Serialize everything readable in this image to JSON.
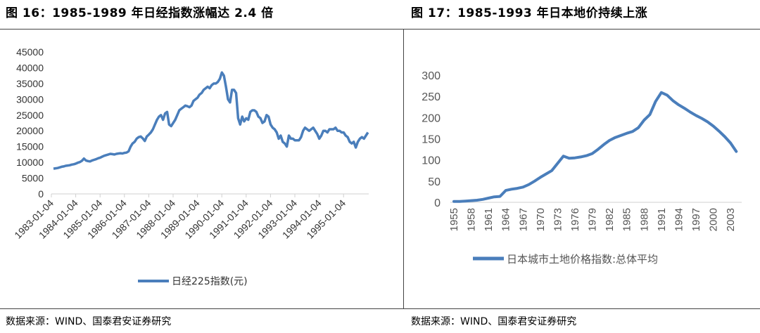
{
  "left": {
    "title": "图 16：1985-1989 年日经指数涨幅达 2.4 倍",
    "source": "数据来源：WIND、国泰君安证券研究"
  },
  "right": {
    "title": "图 17：1985-1993 年日本地价持续上涨",
    "source": "数据来源：WIND、国泰君安证券研究"
  },
  "chart_data": [
    {
      "type": "line",
      "title": "",
      "xlabel": "",
      "ylabel": "",
      "ylim": [
        0,
        45000
      ],
      "yticks": [
        "0",
        "5000",
        "10000",
        "15000",
        "20000",
        "25000",
        "30000",
        "35000",
        "40000",
        "45000"
      ],
      "xticks": [
        "1983-01-04",
        "1984-01-04",
        "1985-01-04",
        "1986-01-04",
        "1987-01-04",
        "1988-01-04",
        "1989-01-04",
        "1990-01-04",
        "1991-01-04",
        "1992-01-04",
        "1993-01-04",
        "1994-01-04",
        "1995-01-04"
      ],
      "grid": false,
      "legend_placement": "bottom",
      "color": "#4a7ebb",
      "series": [
        {
          "name": "日经225指数(元)",
          "start": "1983-01",
          "frequency": "monthly",
          "values": [
            8000,
            8100,
            8200,
            8400,
            8600,
            8700,
            8900,
            9000,
            9100,
            9300,
            9400,
            9600,
            9900,
            10100,
            10500,
            11200,
            10600,
            10400,
            10300,
            10600,
            10800,
            11000,
            11300,
            11500,
            11800,
            12100,
            12300,
            12500,
            12700,
            12600,
            12500,
            12700,
            12800,
            12900,
            12800,
            13000,
            13100,
            13500,
            15000,
            16000,
            16500,
            17500,
            18000,
            18200,
            17600,
            16800,
            18200,
            18800,
            19500,
            20500,
            22000,
            23500,
            24500,
            25000,
            23500,
            25500,
            26000,
            22000,
            21500,
            22500,
            23500,
            25000,
            26500,
            27000,
            27500,
            28000,
            27800,
            27500,
            28000,
            29500,
            30000,
            30500,
            31500,
            32000,
            33000,
            33500,
            34000,
            33500,
            34500,
            35000,
            35000,
            35500,
            36500,
            38500,
            37500,
            34000,
            30000,
            29000,
            33000,
            33000,
            32000,
            24000,
            22000,
            24500,
            23000,
            24000,
            23500,
            26000,
            26500,
            26500,
            26000,
            24500,
            24000,
            22500,
            23000,
            25000,
            24500,
            22000,
            21000,
            20500,
            19500,
            17500,
            18500,
            16500,
            16000,
            15000,
            18500,
            17500,
            17500,
            17000,
            17000,
            17000,
            18000,
            20000,
            21000,
            20500,
            20000,
            20500,
            21000,
            20000,
            19000,
            17500,
            18500,
            20000,
            20000,
            19500,
            20500,
            20500,
            20500,
            21000,
            20000,
            20000,
            19500,
            19500,
            18500,
            18000,
            16500,
            16000,
            16500,
            14700,
            16500,
            17500,
            18000,
            17500,
            18500,
            19500
          ]
        }
      ]
    },
    {
      "type": "line",
      "title": "",
      "xlabel": "",
      "ylabel": "",
      "ylim": [
        0,
        300
      ],
      "yticks": [
        "0",
        "50",
        "100",
        "150",
        "200",
        "250",
        "300"
      ],
      "xticks": [
        "1955",
        "1958",
        "1961",
        "1964",
        "1967",
        "1970",
        "1973",
        "1976",
        "1979",
        "1982",
        "1985",
        "1988",
        "1991",
        "1994",
        "1997",
        "2000",
        "2003"
      ],
      "grid": false,
      "legend_placement": "bottom",
      "color": "#4a7ebb",
      "series": [
        {
          "name": "日本城市土地价格指数:总体平均",
          "x": [
            1955,
            1956,
            1957,
            1958,
            1959,
            1960,
            1961,
            1962,
            1963,
            1964,
            1965,
            1966,
            1967,
            1968,
            1969,
            1970,
            1971,
            1972,
            1973,
            1974,
            1975,
            1976,
            1977,
            1978,
            1979,
            1980,
            1981,
            1982,
            1983,
            1984,
            1985,
            1986,
            1987,
            1988,
            1989,
            1990,
            1991,
            1992,
            1993,
            1994,
            1995,
            1996,
            1997,
            1998,
            1999,
            2000,
            2001,
            2002,
            2003,
            2004
          ],
          "values": [
            2,
            2,
            3,
            4,
            5,
            7,
            10,
            13,
            14,
            28,
            31,
            33,
            36,
            42,
            50,
            59,
            67,
            75,
            92,
            109,
            104,
            105,
            107,
            110,
            115,
            125,
            136,
            146,
            153,
            158,
            163,
            167,
            176,
            194,
            207,
            238,
            259,
            253,
            240,
            230,
            222,
            213,
            205,
            198,
            190,
            180,
            168,
            155,
            140,
            120
          ]
        }
      ]
    }
  ]
}
